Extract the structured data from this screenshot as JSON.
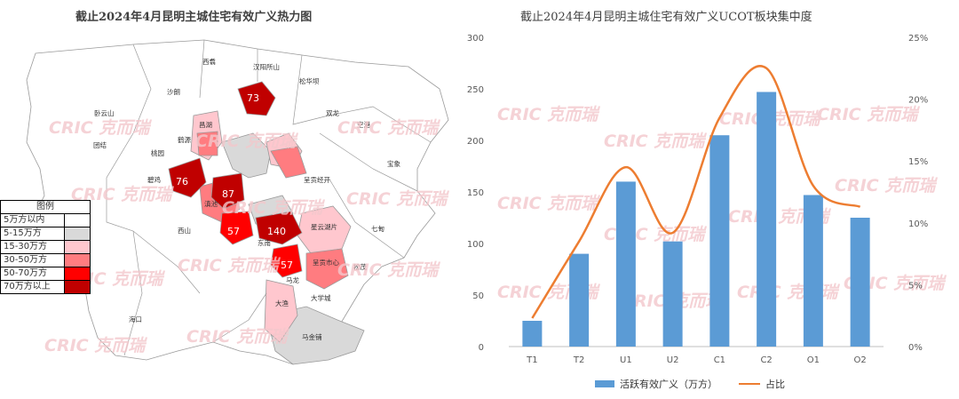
{
  "left_map": {
    "title": "截止2024年4月昆明主城住宅有效广义热力图",
    "legend": {
      "title": "图例",
      "items": [
        {
          "label": "5万方以内",
          "color": "#ffffff"
        },
        {
          "label": "5-15万方",
          "color": "#d9d9d9"
        },
        {
          "label": "15-30万方",
          "color": "#ffc7ce"
        },
        {
          "label": "30-50万方",
          "color": "#ff7c80"
        },
        {
          "label": "50-70万方",
          "color": "#ff0000"
        },
        {
          "label": "70万方以上",
          "color": "#c00000"
        }
      ]
    },
    "region_names": [
      "西翥",
      "汉阳所山",
      "沙朗",
      "松华坝",
      "卧云山",
      "双龙",
      "团结",
      "空港",
      "桃园",
      "宝象",
      "碧鸡",
      "呈贡经开",
      "西山",
      "东南",
      "七甸",
      "星云湖片",
      "呈贡市心",
      "松茂",
      "马金铺",
      "大渔",
      "大学城",
      "海口",
      "马龙",
      "滇池",
      "昌湖",
      "鹤源"
    ],
    "value_labels": [
      "73",
      "76",
      "87",
      "57",
      "140",
      "57"
    ],
    "watermark": "CRIC 克而瑞"
  },
  "chart_data": {
    "type": "bar",
    "title": "截止2024年4月昆明主城住宅有效广义UCOT板块集中度",
    "categories": [
      "T1",
      "T2",
      "U1",
      "U2",
      "C1",
      "C2",
      "O1",
      "O2"
    ],
    "series": [
      {
        "name": "活跃有效广义（万方）",
        "type": "bar",
        "axis": "left",
        "color": "#5b9bd5",
        "values": [
          25,
          90,
          160,
          102,
          205,
          247,
          147,
          125
        ]
      },
      {
        "name": "占比",
        "type": "line",
        "axis": "right",
        "color": "#ed7d31",
        "values": [
          0.023,
          0.085,
          0.145,
          0.092,
          0.185,
          0.225,
          0.13,
          0.113
        ]
      }
    ],
    "y_left": {
      "min": 0,
      "max": 300,
      "ticks": [
        "0",
        "50",
        "100",
        "150",
        "200",
        "250",
        "300"
      ]
    },
    "y_right": {
      "min": 0,
      "max": 0.25,
      "ticks": [
        "0%",
        "5%",
        "10%",
        "15%",
        "20%",
        "25%"
      ]
    },
    "grid": false,
    "legend_position": "bottom"
  }
}
